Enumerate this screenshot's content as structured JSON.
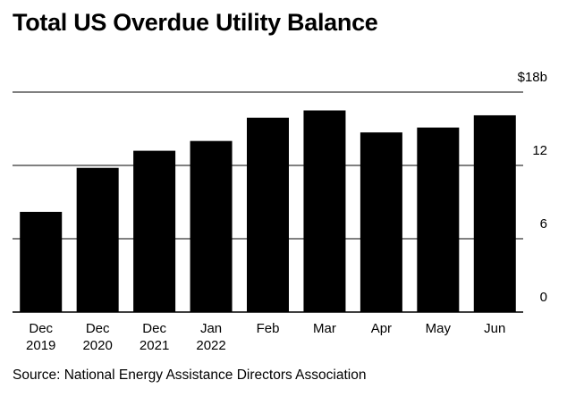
{
  "chart_data": {
    "type": "bar",
    "title": "Total US Overdue Utility Balance",
    "categories": [
      [
        "Dec",
        "2019"
      ],
      [
        "Dec",
        "2020"
      ],
      [
        "Dec",
        "2021"
      ],
      [
        "Jan",
        "2022"
      ],
      [
        "Feb",
        ""
      ],
      [
        "Mar",
        ""
      ],
      [
        "Apr",
        ""
      ],
      [
        "May",
        ""
      ],
      [
        "Jun",
        ""
      ]
    ],
    "values": [
      8.2,
      11.8,
      13.2,
      14.0,
      15.9,
      16.5,
      14.7,
      15.1,
      16.1
    ],
    "ylim": [
      0,
      18
    ],
    "yticks": [
      0,
      6,
      12,
      18
    ],
    "ytick_labels": [
      "0",
      "6",
      "12",
      "$18b"
    ],
    "xlabel": "",
    "ylabel": "",
    "bar_color": "#000000",
    "source": "Source: National Energy Assistance Directors Association"
  }
}
